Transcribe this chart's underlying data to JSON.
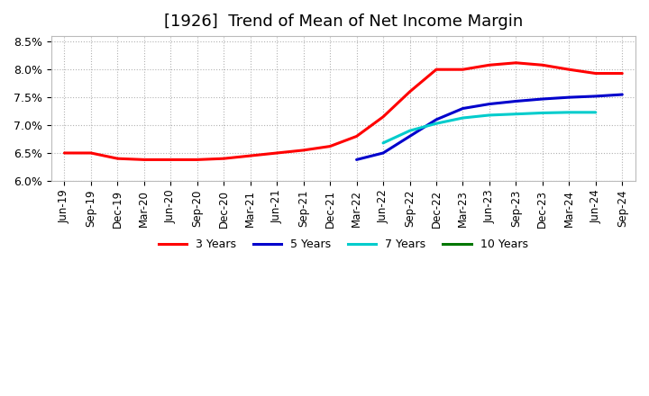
{
  "title": "[1926]  Trend of Mean of Net Income Margin",
  "title_fontsize": 13,
  "ylim": [
    0.06,
    0.086
  ],
  "yticks": [
    0.06,
    0.065,
    0.07,
    0.075,
    0.08,
    0.085
  ],
  "background_color": "#ffffff",
  "plot_bg_color": "#ffffff",
  "grid_color": "#aaaaaa",
  "series": {
    "3 Years": {
      "color": "#ff0000",
      "data": [
        [
          "Jun-19",
          0.065
        ],
        [
          "Sep-19",
          0.065
        ],
        [
          "Dec-19",
          0.064
        ],
        [
          "Mar-20",
          0.0638
        ],
        [
          "Jun-20",
          0.0638
        ],
        [
          "Sep-20",
          0.0638
        ],
        [
          "Dec-20",
          0.064
        ],
        [
          "Mar-21",
          0.0645
        ],
        [
          "Jun-21",
          0.065
        ],
        [
          "Sep-21",
          0.0655
        ],
        [
          "Dec-21",
          0.0662
        ],
        [
          "Mar-22",
          0.068
        ],
        [
          "Jun-22",
          0.0715
        ],
        [
          "Sep-22",
          0.076
        ],
        [
          "Dec-22",
          0.08
        ],
        [
          "Mar-23",
          0.08
        ],
        [
          "Jun-23",
          0.0808
        ],
        [
          "Sep-23",
          0.0812
        ],
        [
          "Dec-23",
          0.0808
        ],
        [
          "Mar-24",
          0.08
        ],
        [
          "Jun-24",
          0.0793
        ],
        [
          "Sep-24",
          0.0793
        ]
      ]
    },
    "5 Years": {
      "color": "#0000cc",
      "data": [
        [
          "Jun-19",
          null
        ],
        [
          "Sep-19",
          null
        ],
        [
          "Dec-19",
          null
        ],
        [
          "Mar-20",
          null
        ],
        [
          "Jun-20",
          null
        ],
        [
          "Sep-20",
          null
        ],
        [
          "Dec-20",
          null
        ],
        [
          "Mar-21",
          null
        ],
        [
          "Jun-21",
          null
        ],
        [
          "Sep-21",
          null
        ],
        [
          "Dec-21",
          null
        ],
        [
          "Mar-22",
          0.0638
        ],
        [
          "Jun-22",
          0.065
        ],
        [
          "Sep-22",
          0.068
        ],
        [
          "Dec-22",
          0.071
        ],
        [
          "Mar-23",
          0.073
        ],
        [
          "Jun-23",
          0.0738
        ],
        [
          "Sep-23",
          0.0743
        ],
        [
          "Dec-23",
          0.0747
        ],
        [
          "Mar-24",
          0.075
        ],
        [
          "Jun-24",
          0.0752
        ],
        [
          "Sep-24",
          0.0755
        ]
      ]
    },
    "7 Years": {
      "color": "#00cccc",
      "data": [
        [
          "Jun-19",
          null
        ],
        [
          "Sep-19",
          null
        ],
        [
          "Dec-19",
          null
        ],
        [
          "Mar-20",
          null
        ],
        [
          "Jun-20",
          null
        ],
        [
          "Sep-20",
          null
        ],
        [
          "Dec-20",
          null
        ],
        [
          "Mar-21",
          null
        ],
        [
          "Jun-21",
          null
        ],
        [
          "Sep-21",
          null
        ],
        [
          "Dec-21",
          null
        ],
        [
          "Mar-22",
          null
        ],
        [
          "Jun-22",
          0.0668
        ],
        [
          "Sep-22",
          0.069
        ],
        [
          "Dec-22",
          0.0703
        ],
        [
          "Mar-23",
          0.0713
        ],
        [
          "Jun-23",
          0.0718
        ],
        [
          "Sep-23",
          0.072
        ],
        [
          "Dec-23",
          0.0722
        ],
        [
          "Mar-24",
          0.0723
        ],
        [
          "Jun-24",
          0.0723
        ],
        [
          "Sep-24",
          null
        ]
      ]
    },
    "10 Years": {
      "color": "#007700",
      "data": [
        [
          "Jun-19",
          null
        ],
        [
          "Sep-19",
          null
        ],
        [
          "Dec-19",
          null
        ],
        [
          "Mar-20",
          null
        ],
        [
          "Jun-20",
          null
        ],
        [
          "Sep-20",
          null
        ],
        [
          "Dec-20",
          null
        ],
        [
          "Mar-21",
          null
        ],
        [
          "Jun-21",
          null
        ],
        [
          "Sep-21",
          null
        ],
        [
          "Dec-21",
          null
        ],
        [
          "Mar-22",
          null
        ],
        [
          "Jun-22",
          null
        ],
        [
          "Sep-22",
          null
        ],
        [
          "Dec-22",
          null
        ],
        [
          "Mar-23",
          null
        ],
        [
          "Jun-23",
          null
        ],
        [
          "Sep-23",
          null
        ],
        [
          "Dec-23",
          null
        ],
        [
          "Mar-24",
          null
        ],
        [
          "Jun-24",
          null
        ],
        [
          "Sep-24",
          null
        ]
      ]
    }
  },
  "xtick_labels": [
    "Jun-19",
    "Sep-19",
    "Dec-19",
    "Mar-20",
    "Jun-20",
    "Sep-20",
    "Dec-20",
    "Mar-21",
    "Jun-21",
    "Sep-21",
    "Dec-21",
    "Mar-22",
    "Jun-22",
    "Sep-22",
    "Dec-22",
    "Mar-23",
    "Jun-23",
    "Sep-23",
    "Dec-23",
    "Mar-24",
    "Jun-24",
    "Sep-24"
  ]
}
